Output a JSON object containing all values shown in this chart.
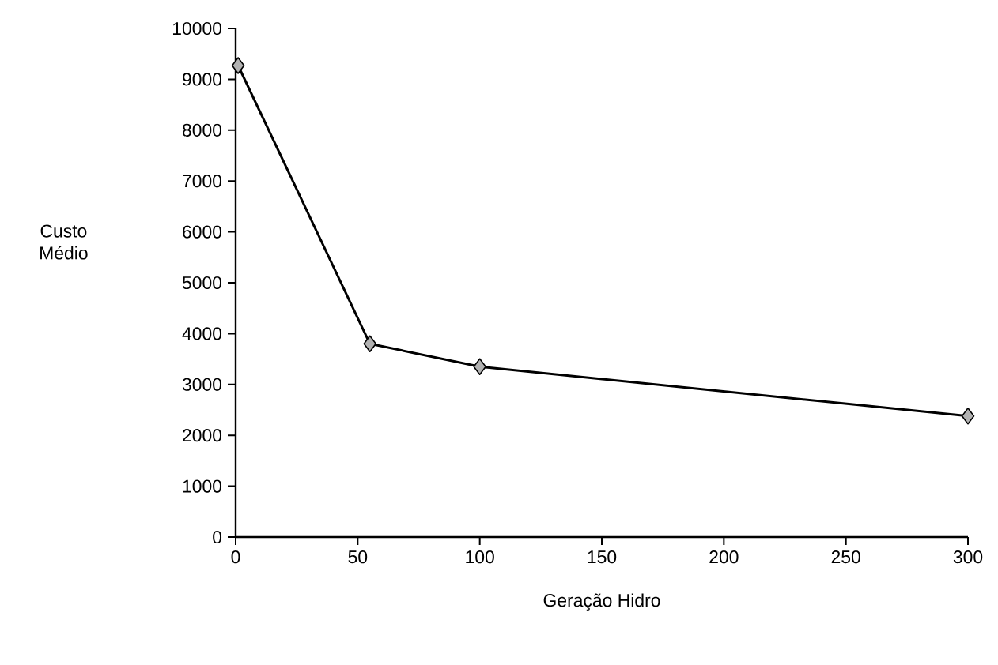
{
  "chart_data": {
    "type": "line",
    "xlabel": "Geração Hidro",
    "ylabel": "Custo Médio",
    "x": [
      1,
      55,
      100,
      300
    ],
    "values": [
      9270,
      3800,
      3350,
      2380
    ],
    "color": "#000000",
    "marker": "diamond",
    "line_style": "solid",
    "grid": false,
    "xlim": [
      0,
      300
    ],
    "ylim": [
      0,
      10000
    ],
    "xticks": [
      0,
      50,
      100,
      150,
      200,
      250,
      300
    ],
    "yticks": [
      0,
      1000,
      2000,
      3000,
      4000,
      5000,
      6000,
      7000,
      8000,
      9000,
      10000
    ]
  }
}
